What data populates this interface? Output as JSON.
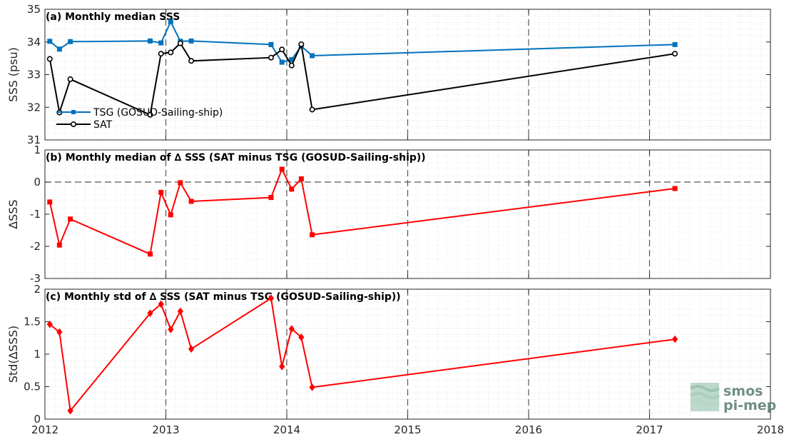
{
  "colors": {
    "tsg": "#0072BD",
    "sat": "#000000",
    "delta": "#FF0000",
    "grid_major": "#555555",
    "grid_minor": "#d5d5d5"
  },
  "logo": {
    "line1": "smos",
    "line2": "pi-mep"
  },
  "chart_data": [
    {
      "id": "a",
      "type": "line",
      "title": "(a) Monthly median SSS",
      "ylabel": "SSS (psu)",
      "xlabel": "",
      "xlim": [
        2012,
        2018
      ],
      "ylim": [
        31,
        35
      ],
      "yticks": [
        31,
        32,
        33,
        34,
        35
      ],
      "xtick_labels": [
        "2012",
        "2013",
        "2014",
        "2015",
        "2016",
        "2017",
        "2018"
      ],
      "legend": "lower-left",
      "series": [
        {
          "name": "TSG (GOSUD-Sailing-ship)",
          "marker": "square",
          "x": [
            2012.04,
            2012.12,
            2012.21,
            2012.87,
            2012.96,
            2013.04,
            2013.12,
            2013.21,
            2013.87,
            2013.96,
            2014.04,
            2014.12,
            2014.21,
            2017.21
          ],
          "y": [
            34.02,
            33.78,
            34.01,
            34.03,
            33.97,
            34.62,
            34.02,
            34.03,
            33.92,
            33.38,
            33.46,
            33.87,
            33.58,
            33.92
          ]
        },
        {
          "name": "SAT",
          "marker": "circle",
          "x": [
            2012.04,
            2012.12,
            2012.21,
            2012.87,
            2012.96,
            2013.04,
            2013.12,
            2013.21,
            2013.87,
            2013.96,
            2014.04,
            2014.12,
            2014.21,
            2017.21
          ],
          "y": [
            33.48,
            31.84,
            32.86,
            31.77,
            33.64,
            33.68,
            33.96,
            33.42,
            33.52,
            33.77,
            33.28,
            33.93,
            31.93,
            33.64
          ]
        }
      ]
    },
    {
      "id": "b",
      "type": "line",
      "title": "(b) Monthly median of ∆ SSS (SAT minus TSG (GOSUD-Sailing-ship))",
      "ylabel": "∆SSS",
      "xlabel": "",
      "xlim": [
        2012,
        2018
      ],
      "ylim": [
        -3,
        1
      ],
      "yticks": [
        -3,
        -2,
        -1,
        0,
        1
      ],
      "xtick_labels": [
        "2012",
        "2013",
        "2014",
        "2015",
        "2016",
        "2017",
        "2018"
      ],
      "zero_line": true,
      "series": [
        {
          "marker": "square",
          "x": [
            2012.04,
            2012.12,
            2012.21,
            2012.87,
            2012.96,
            2013.04,
            2013.12,
            2013.21,
            2013.87,
            2013.96,
            2014.04,
            2014.12,
            2014.21,
            2017.21
          ],
          "y": [
            -0.62,
            -1.96,
            -1.15,
            -2.24,
            -0.32,
            -1.02,
            -0.02,
            -0.6,
            -0.48,
            0.4,
            -0.22,
            0.1,
            -1.64,
            -0.2
          ]
        }
      ]
    },
    {
      "id": "c",
      "type": "line",
      "title": "(c) Monthly std of ∆ SSS (SAT minus TSG (GOSUD-Sailing-ship))",
      "ylabel": "Std(∆SSS)",
      "xlabel": "",
      "xlim": [
        2012,
        2018
      ],
      "ylim": [
        0,
        2
      ],
      "yticks": [
        0,
        0.5,
        1,
        1.5,
        2
      ],
      "xtick_labels": [
        "2012",
        "2013",
        "2014",
        "2015",
        "2016",
        "2017",
        "2018"
      ],
      "show_xtick_labels": true,
      "series": [
        {
          "marker": "diamond",
          "x": [
            2012.04,
            2012.12,
            2012.21,
            2012.87,
            2012.96,
            2013.04,
            2013.12,
            2013.21,
            2013.87,
            2013.96,
            2014.04,
            2014.12,
            2014.21,
            2017.21
          ],
          "y": [
            1.46,
            1.34,
            0.13,
            1.63,
            1.77,
            1.38,
            1.66,
            1.08,
            1.86,
            0.81,
            1.39,
            1.26,
            0.49,
            1.23
          ]
        }
      ]
    }
  ]
}
